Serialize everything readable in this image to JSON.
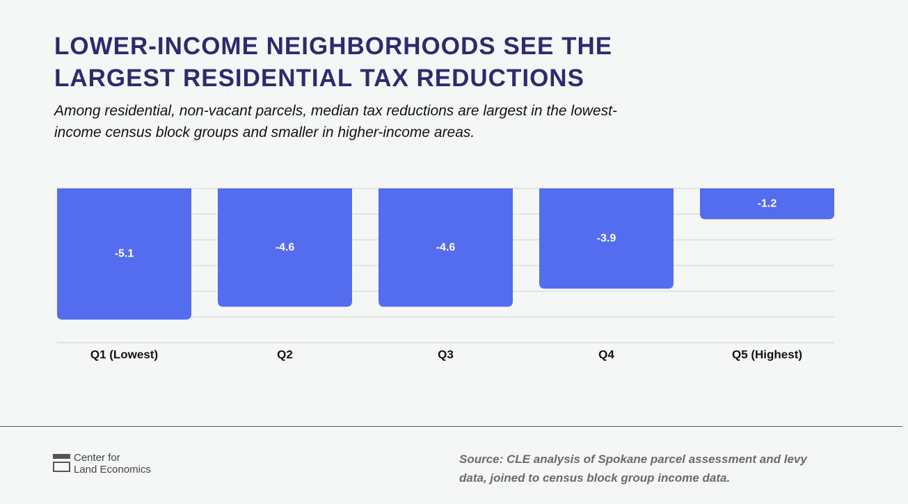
{
  "chart_data": {
    "type": "bar",
    "title": "LOWER-INCOME NEIGHBORHOODS SEE THE LARGEST RESIDENTIAL TAX REDUCTIONS",
    "subtitle": "Among residential, non-vacant parcels, median tax reductions are largest in the lowest- income census block groups and smaller in higher-income areas.",
    "categories": [
      "Q1 (Lowest)",
      "Q2",
      "Q3",
      "Q4",
      "Q5 (Highest)"
    ],
    "values": [
      -5.1,
      -4.6,
      -4.6,
      -3.9,
      -1.2
    ],
    "color": "#536dee",
    "ylim": [
      -6,
      0
    ],
    "yticks": [
      -6,
      -5,
      -4,
      -3,
      -2,
      -1,
      0
    ],
    "grid": true
  },
  "source": "Source: CLE analysis of Spokane parcel assessment and levy data, joined to census block group income data.",
  "logo": [
    "Center for",
    "Land Economics"
  ]
}
